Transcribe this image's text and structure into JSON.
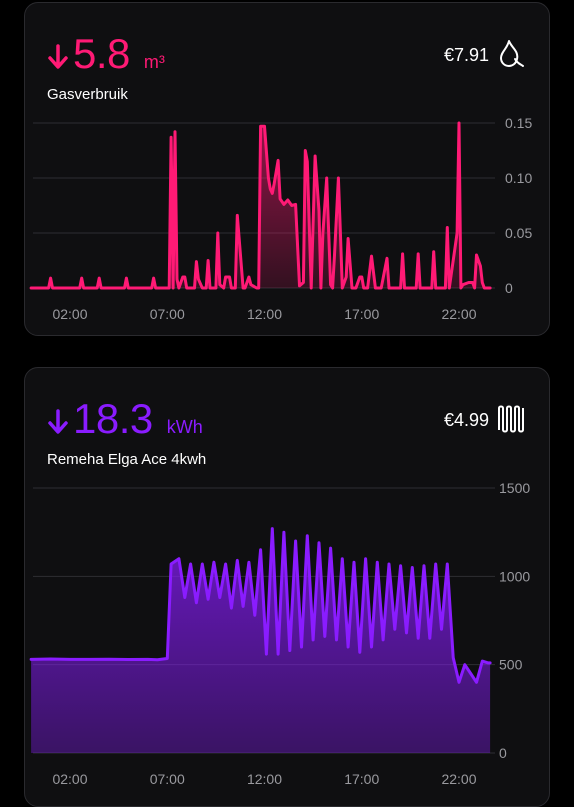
{
  "gas": {
    "value": "5.8",
    "unit": "m³",
    "name": "Gasverbruik",
    "cost": "€7.91",
    "icon": "flame-icon",
    "color": "#ff1a75",
    "y_labels": [
      "0.15",
      "0.10",
      "0.05",
      "0"
    ],
    "x_labels": [
      "02:00",
      "07:00",
      "12:00",
      "17:00",
      "22:00"
    ]
  },
  "heat": {
    "value": "18.3",
    "unit": "kWh",
    "name": "Remeha Elga Ace 4kwh",
    "cost": "€4.99",
    "icon": "radiator-icon",
    "color": "#8a1cff",
    "y_labels": [
      "1500",
      "1000",
      "500",
      "0"
    ],
    "x_labels": [
      "02:00",
      "07:00",
      "12:00",
      "17:00",
      "22:00"
    ]
  },
  "chart_data": [
    {
      "type": "area",
      "ylim": [
        0,
        0.15
      ],
      "x_hours": [
        0,
        0.9,
        1.0,
        1.1,
        1.9,
        2.5,
        2.6,
        2.7,
        3.4,
        3.5,
        3.6,
        4.8,
        4.9,
        5.0,
        6.2,
        6.3,
        6.4,
        7.1,
        7.2,
        7.3,
        7.4,
        7.5,
        7.6,
        7.8,
        7.9,
        8.0,
        8.4,
        8.5,
        8.6,
        8.8,
        9.0,
        9.1,
        9.2,
        9.5,
        9.6,
        9.7,
        9.9,
        10.0,
        10.2,
        10.3,
        10.5,
        10.6,
        10.9,
        11.0,
        11.2,
        11.3,
        11.6,
        11.7,
        11.8,
        12.0,
        12.2,
        12.3,
        12.4,
        12.5,
        12.7,
        12.8,
        13.0,
        13.2,
        13.4,
        13.6,
        13.8,
        14.0,
        14.1,
        14.2,
        14.4,
        14.6,
        14.8,
        14.9,
        15.0,
        15.2,
        15.4,
        15.5,
        15.6,
        15.8,
        15.9,
        16.0,
        16.2,
        16.3,
        16.5,
        16.7,
        16.9,
        17.0,
        17.1,
        17.3,
        17.5,
        17.7,
        17.9,
        18.0,
        18.3,
        18.4,
        18.5,
        19.0,
        19.1,
        19.2,
        19.8,
        19.9,
        20.0,
        20.6,
        20.7,
        20.8,
        21.3,
        21.4,
        21.5,
        21.9,
        22.0,
        22.1,
        22.2,
        22.5,
        22.7,
        22.8,
        22.9,
        23.1,
        23.2,
        23.3,
        23.6
      ],
      "y": [
        0,
        0,
        0.009,
        0,
        0,
        0,
        0.009,
        0,
        0,
        0.009,
        0,
        0,
        0.009,
        0,
        0,
        0.009,
        0,
        0,
        0.137,
        0,
        0.142,
        0.008,
        0,
        0.01,
        0.01,
        0,
        0,
        0.024,
        0.008,
        0,
        0,
        0.025,
        0,
        0,
        0.05,
        0.003,
        0,
        0.01,
        0.01,
        0,
        0,
        0.066,
        0,
        0,
        0.01,
        0.003,
        0,
        0,
        0.147,
        0.147,
        0.1,
        0.09,
        0.086,
        0.095,
        0.116,
        0.081,
        0.076,
        0.08,
        0.075,
        0.076,
        0.002,
        0.005,
        0.125,
        0.115,
        0,
        0.12,
        0.07,
        0,
        0.05,
        0.1,
        0.003,
        0,
        0.03,
        0.1,
        0.05,
        0,
        0.01,
        0.045,
        0,
        0,
        0.01,
        0.01,
        0,
        0,
        0.029,
        0,
        0,
        0,
        0.027,
        0,
        0,
        0,
        0.031,
        0,
        0,
        0.031,
        0,
        0,
        0.033,
        0,
        0,
        0.055,
        0,
        0.05,
        0.15,
        0,
        0.003,
        0.005,
        0.005,
        0,
        0.03,
        0.02,
        0.005,
        0,
        0
      ]
    },
    {
      "type": "area",
      "ylim": [
        0,
        1500
      ],
      "x_hours": [
        0,
        1,
        2,
        3,
        4,
        5,
        6,
        6.5,
        7,
        7.2,
        7.6,
        7.9,
        8.2,
        8.5,
        8.8,
        9.1,
        9.4,
        9.7,
        10.0,
        10.3,
        10.6,
        10.9,
        11.2,
        11.5,
        11.8,
        12.1,
        12.4,
        12.7,
        13.0,
        13.3,
        13.6,
        13.9,
        14.2,
        14.5,
        14.8,
        15.1,
        15.4,
        15.7,
        16.0,
        16.3,
        16.6,
        16.9,
        17.2,
        17.5,
        17.8,
        18.1,
        18.4,
        18.7,
        19.0,
        19.3,
        19.6,
        19.9,
        20.2,
        20.5,
        20.8,
        21.1,
        21.4,
        21.7,
        22.0,
        22.3,
        22.6,
        22.9,
        23.2,
        23.5,
        23.6
      ],
      "y": [
        530,
        532,
        530,
        530,
        531,
        529,
        530,
        528,
        535,
        1070,
        1100,
        880,
        1070,
        850,
        1070,
        870,
        1080,
        880,
        1070,
        820,
        1090,
        830,
        1080,
        780,
        1150,
        560,
        1270,
        560,
        1250,
        580,
        1200,
        600,
        1230,
        640,
        1190,
        660,
        1160,
        640,
        1100,
        600,
        1080,
        570,
        1100,
        600,
        1080,
        640,
        1070,
        700,
        1060,
        680,
        1050,
        650,
        1060,
        650,
        1070,
        700,
        1070,
        540,
        400,
        500,
        450,
        400,
        520,
        510,
        510
      ]
    }
  ]
}
